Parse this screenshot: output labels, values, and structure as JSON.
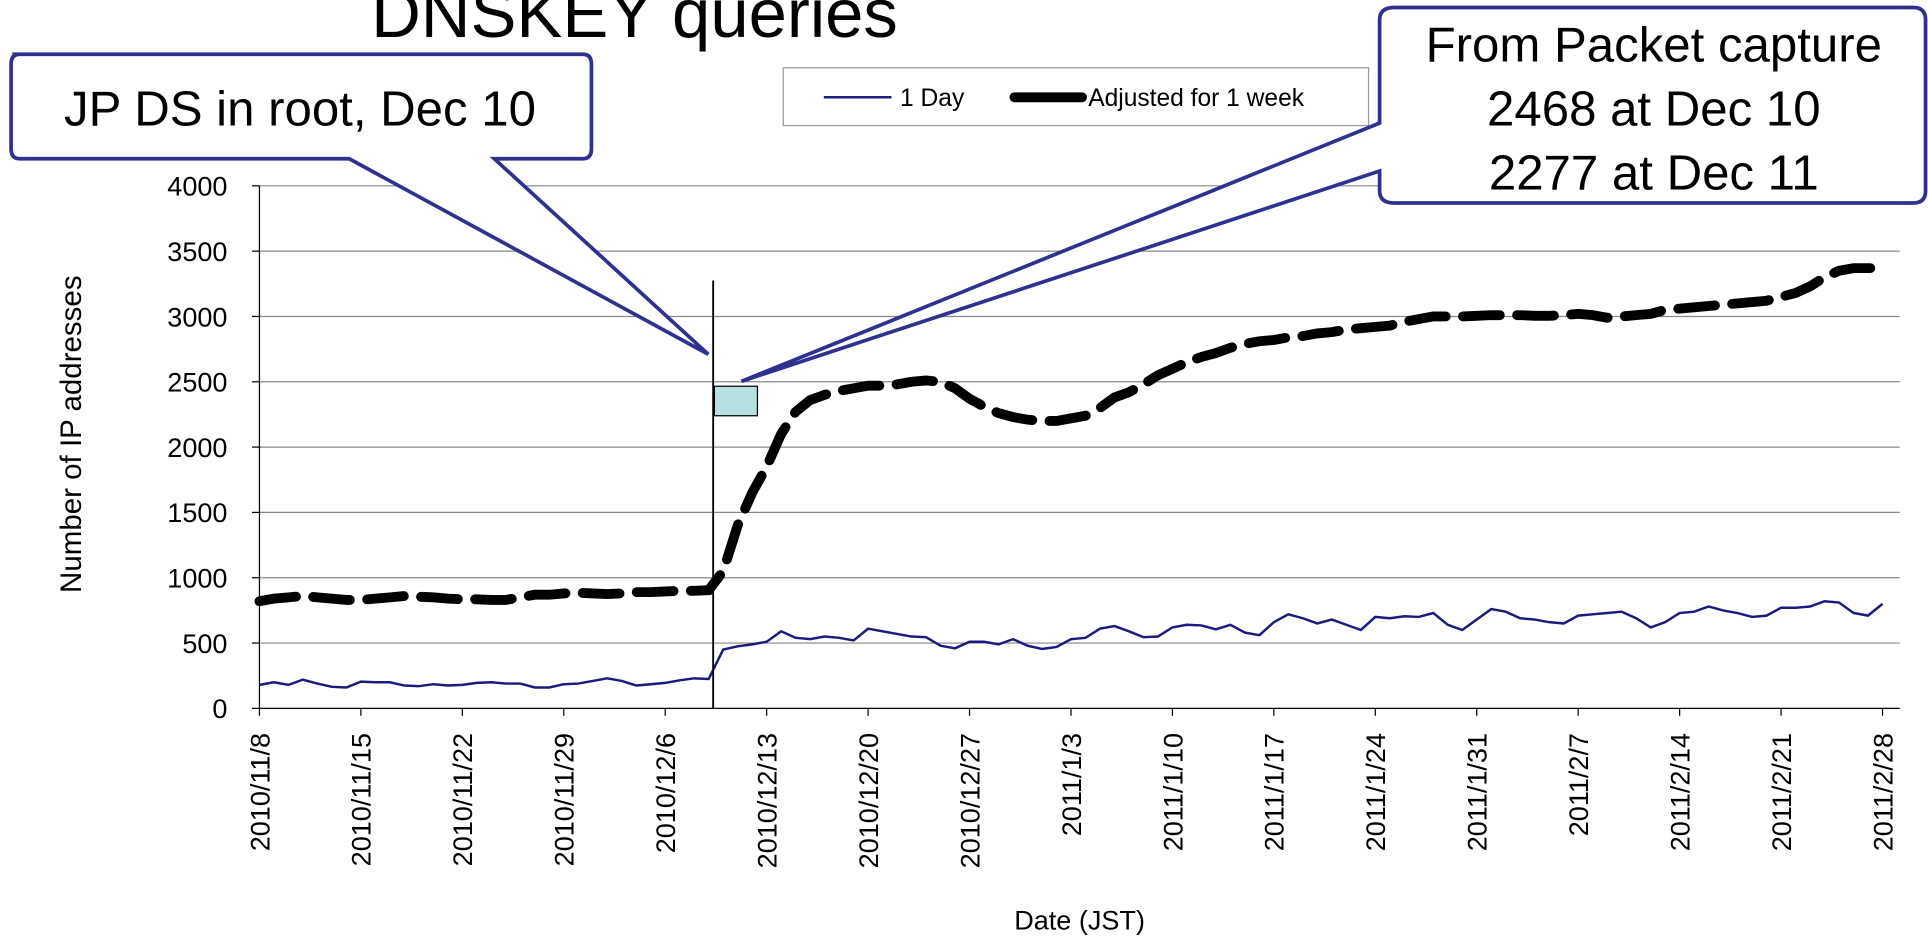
{
  "chart_data": {
    "type": "line",
    "title": "DNSKEY queries",
    "y_label": "Number of IP addresses",
    "x_label": "Date (JST)",
    "categories": [
      "2010/11/8",
      null,
      null,
      null,
      null,
      null,
      null,
      "2010/11/15",
      null,
      null,
      null,
      null,
      null,
      null,
      "2010/11/22",
      null,
      null,
      null,
      null,
      null,
      null,
      "2010/11/29",
      null,
      null,
      null,
      null,
      null,
      null,
      "2010/12/6",
      null,
      null,
      null,
      null,
      null,
      null,
      "2010/12/13",
      null,
      null,
      null,
      null,
      null,
      null,
      "2010/12/20",
      null,
      null,
      null,
      null,
      null,
      null,
      "2010/12/27",
      null,
      null,
      null,
      null,
      null,
      null,
      "2011/1/3",
      null,
      null,
      null,
      null,
      null,
      null,
      "2011/1/10",
      null,
      null,
      null,
      null,
      null,
      null,
      "2011/1/17",
      null,
      null,
      null,
      null,
      null,
      null,
      "2011/1/24",
      null,
      null,
      null,
      null,
      null,
      null,
      "2011/1/31",
      null,
      null,
      null,
      null,
      null,
      null,
      "2011/2/7",
      null,
      null,
      null,
      null,
      null,
      null,
      "2011/2/14",
      null,
      null,
      null,
      null,
      null,
      null,
      "2011/2/21",
      null,
      null,
      null,
      null,
      null,
      null,
      "2011/2/28"
    ],
    "series": [
      {
        "name": "1 Day",
        "color": "#1a1a80",
        "dashed": false,
        "values": [
          180,
          200,
          180,
          220,
          190,
          165,
          160,
          205,
          200,
          200,
          175,
          170,
          185,
          175,
          180,
          195,
          200,
          190,
          190,
          160,
          160,
          185,
          190,
          210,
          230,
          210,
          175,
          185,
          195,
          215,
          230,
          225,
          450,
          475,
          490,
          510,
          590,
          540,
          530,
          550,
          540,
          520,
          610,
          590,
          570,
          550,
          545,
          480,
          460,
          510,
          510,
          490,
          530,
          480,
          455,
          470,
          530,
          540,
          610,
          630,
          590,
          545,
          550,
          620,
          640,
          635,
          605,
          640,
          580,
          560,
          660,
          720,
          690,
          650,
          680,
          640,
          600,
          700,
          690,
          705,
          700,
          730,
          640,
          600,
          680,
          760,
          740,
          690,
          680,
          660,
          650,
          710,
          720,
          730,
          740,
          690,
          620,
          660,
          730,
          740,
          780,
          750,
          730,
          700,
          710,
          770,
          770,
          780,
          820,
          810,
          730,
          710,
          800
        ]
      },
      {
        "name": "Adjusted for 1 week",
        "color": "#000000",
        "dashed": true,
        "values": [
          820,
          840,
          850,
          860,
          850,
          840,
          830,
          830,
          840,
          850,
          860,
          855,
          850,
          840,
          835,
          835,
          830,
          830,
          850,
          870,
          870,
          880,
          885,
          880,
          875,
          880,
          890,
          890,
          895,
          900,
          900,
          905,
          1050,
          1400,
          1650,
          1850,
          2100,
          2270,
          2360,
          2400,
          2430,
          2450,
          2470,
          2470,
          2480,
          2500,
          2510,
          2500,
          2450,
          2370,
          2310,
          2260,
          2230,
          2210,
          2200,
          2200,
          2220,
          2240,
          2300,
          2380,
          2420,
          2480,
          2550,
          2600,
          2650,
          2690,
          2720,
          2760,
          2790,
          2810,
          2820,
          2840,
          2850,
          2870,
          2880,
          2900,
          2910,
          2920,
          2930,
          2960,
          2980,
          3000,
          3000,
          3000,
          3005,
          3010,
          3010,
          3010,
          3005,
          3005,
          3010,
          3020,
          3010,
          2990,
          3000,
          3010,
          3020,
          3050,
          3060,
          3070,
          3080,
          3090,
          3100,
          3110,
          3120,
          3150,
          3180,
          3230,
          3300,
          3350,
          3370,
          3370,
          3370
        ]
      }
    ],
    "ylim": [
      0,
      4000
    ],
    "yticks": [
      0,
      500,
      1000,
      1500,
      2000,
      2500,
      3000,
      3500,
      4000
    ],
    "grid": true,
    "legend": "top",
    "annotations": {
      "left_callout": "JP DS in root, Dec 10",
      "right_callout": [
        "From Packet capture",
        "2468 at Dec 10",
        "2277 at Dec 11"
      ]
    }
  }
}
